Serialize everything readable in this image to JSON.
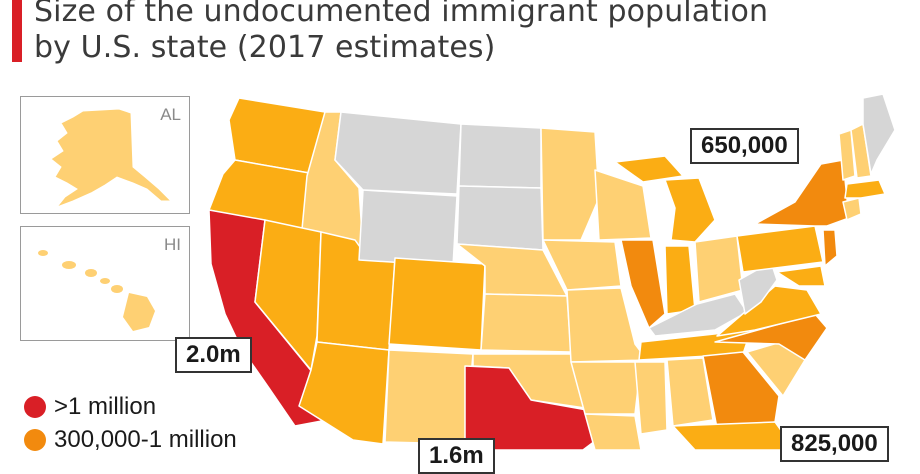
{
  "title": {
    "line1": "Size of the undocumented immigrant population",
    "line2": "by U.S. state (2017 estimates)"
  },
  "insets": {
    "alaska_label": "AL",
    "hawaii_label": "HI"
  },
  "callouts": {
    "california": "2.0m",
    "new_york": "650,000",
    "florida": "825,000",
    "texas": "1.6m"
  },
  "legend": [
    {
      "label": ">1 million",
      "color": "#d91f26"
    },
    {
      "label": "300,000-1 million",
      "color": "#f28a0e"
    }
  ],
  "colors": {
    "over_1m": "#d91f26",
    "300k_1m": "#f28a0e",
    "mid": "#fbad14",
    "low": "#fed073",
    "no_data": "#d6d6d6",
    "accent": "#d91f26"
  }
}
